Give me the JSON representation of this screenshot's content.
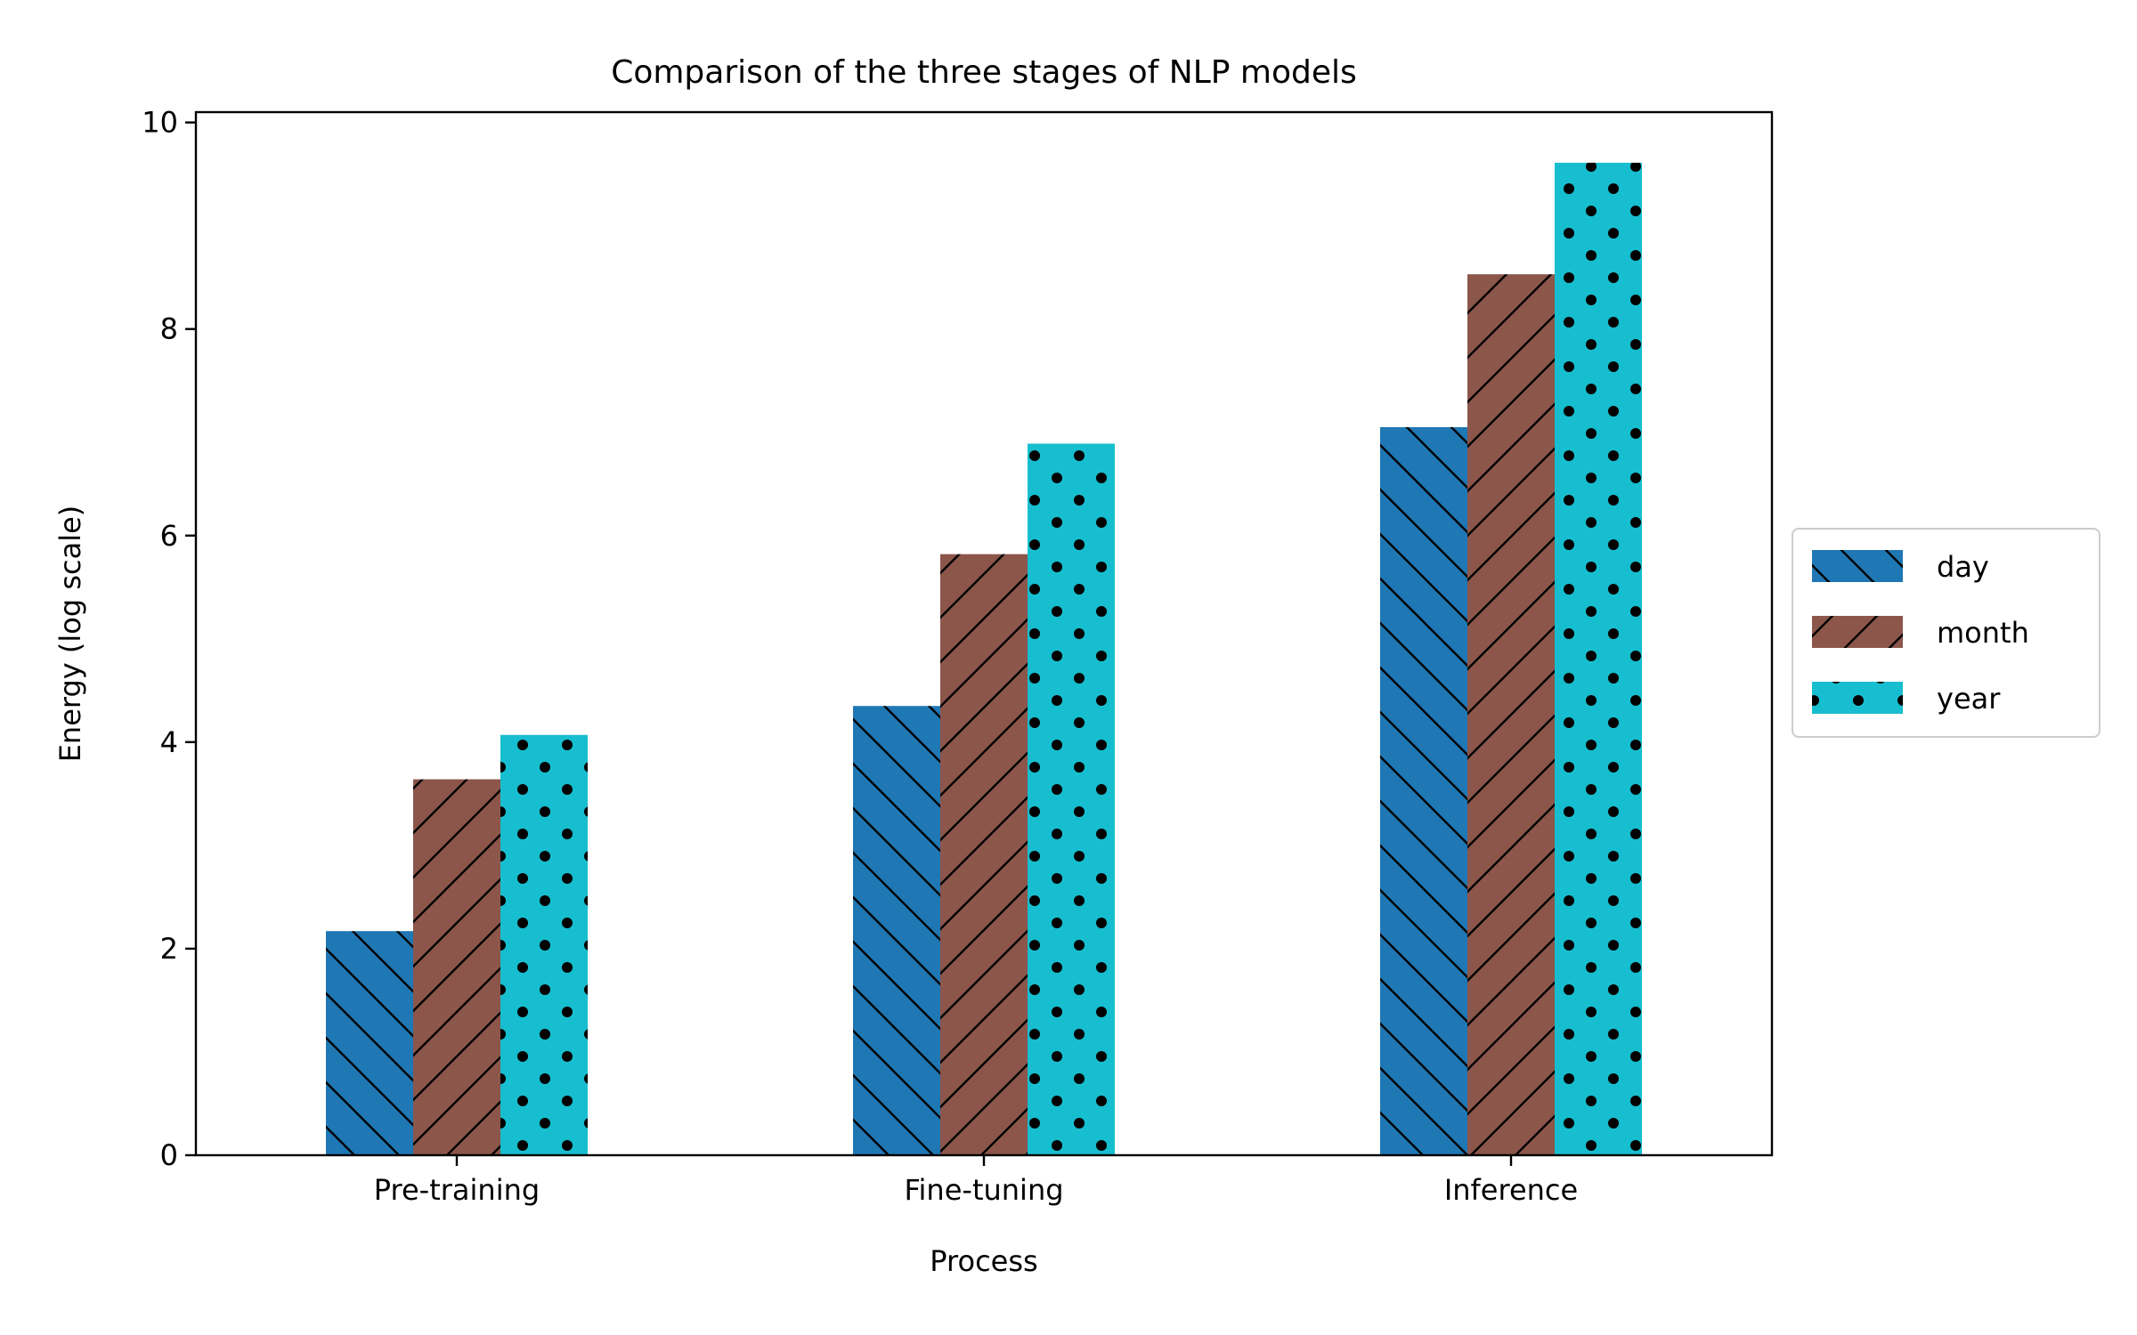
{
  "chart_data": {
    "type": "bar",
    "title": "Comparison of the three stages of NLP models",
    "xlabel": "Process",
    "ylabel": "Energy (log scale)",
    "categories": [
      "Pre-training",
      "Fine-tuning",
      "Inference"
    ],
    "series": [
      {
        "name": "day",
        "values": [
          2.17,
          4.35,
          7.05
        ],
        "color": "#1f77b4",
        "hatch": "backslash"
      },
      {
        "name": "month",
        "values": [
          3.64,
          5.82,
          8.53
        ],
        "color": "#8c564b",
        "hatch": "slash"
      },
      {
        "name": "year",
        "values": [
          4.07,
          6.89,
          9.61
        ],
        "color": "#17becf",
        "hatch": "dots"
      }
    ],
    "ylim": [
      0,
      10.1
    ],
    "yticks": [
      0,
      2,
      4,
      6,
      8,
      10
    ],
    "grid": false,
    "legend_position": "center-right"
  }
}
